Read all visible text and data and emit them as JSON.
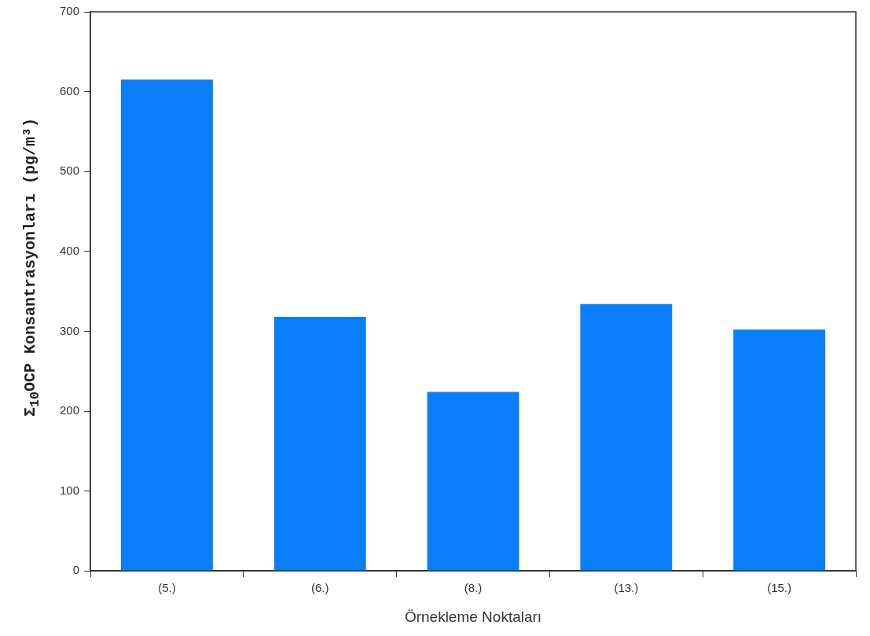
{
  "chart_data": {
    "type": "bar",
    "xlabel": "Örnekleme Noktaları",
    "ylabel": "Σ$_{10}$OCP Konsantrasyonları (pg/m³)",
    "categories": [
      "(5.)",
      "(6.)",
      "(8.)",
      "(13.)",
      "(15.)"
    ],
    "values": [
      615,
      318,
      224,
      334,
      302
    ],
    "color": "#0a7ef8",
    "ylim": [
      0,
      700
    ],
    "yticks": [
      0,
      100,
      200,
      300,
      400,
      500,
      600,
      700
    ],
    "grid": false
  }
}
